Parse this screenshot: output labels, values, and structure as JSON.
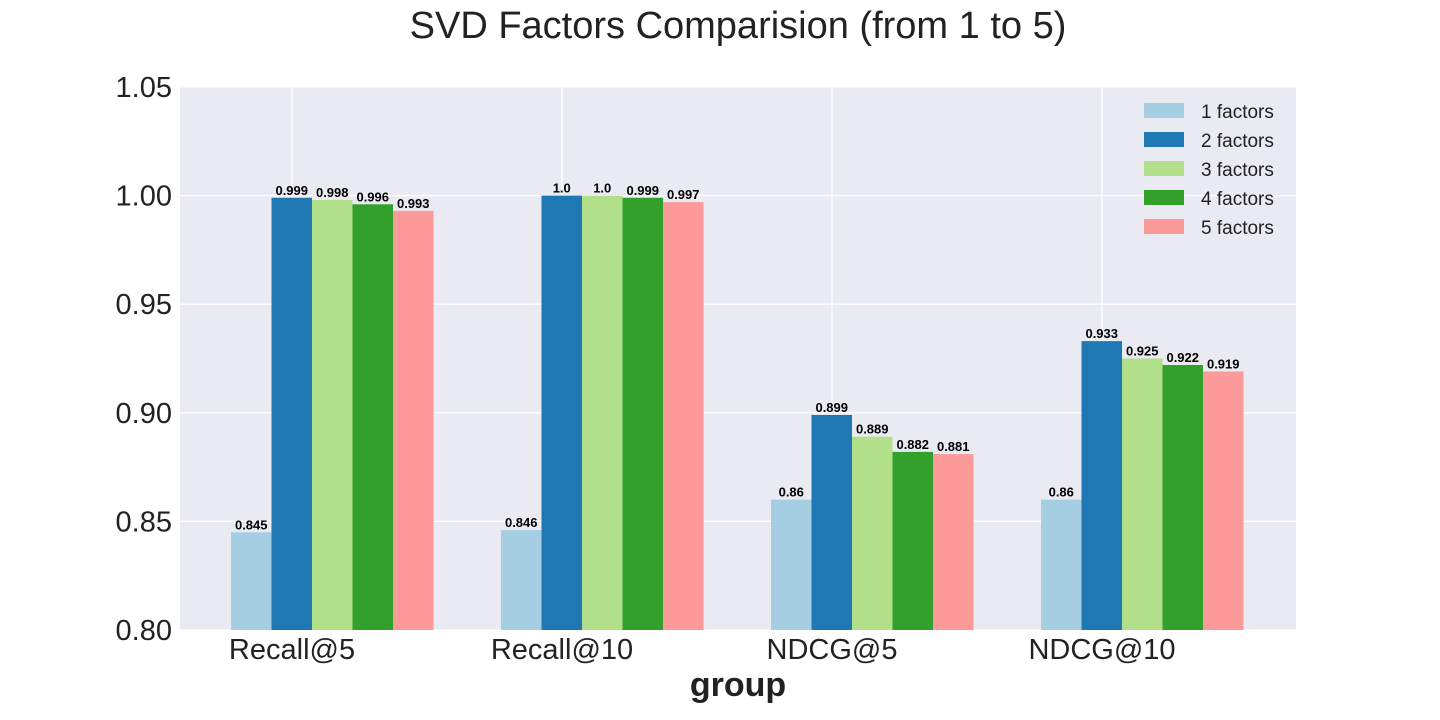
{
  "chart_data": {
    "type": "bar",
    "title": "SVD Factors Comparision (from 1 to 5)",
    "xlabel": "group",
    "ylabel": "",
    "ylim": [
      0.8,
      1.05
    ],
    "y_ticks": [
      "0.80",
      "0.85",
      "0.90",
      "0.95",
      "1.00",
      "1.05"
    ],
    "y_tick_values": [
      0.8,
      0.85,
      0.9,
      0.95,
      1.0,
      1.05
    ],
    "grid": true,
    "legend_placement": "top-right",
    "categories": [
      "Recall@5",
      "Recall@10",
      "NDCG@5",
      "NDCG@10"
    ],
    "series": [
      {
        "name": "1 factors",
        "color": "#a6cee3",
        "values": [
          0.845,
          0.846,
          0.86,
          0.86
        ],
        "labels": [
          "0.845",
          "0.846",
          "0.86",
          "0.86"
        ]
      },
      {
        "name": "2 factors",
        "color": "#1f78b4",
        "values": [
          0.999,
          1.0,
          0.899,
          0.933
        ],
        "labels": [
          "0.999",
          "1.0",
          "0.899",
          "0.933"
        ]
      },
      {
        "name": "3 factors",
        "color": "#b2df8a",
        "values": [
          0.998,
          1.0,
          0.889,
          0.925
        ],
        "labels": [
          "0.998",
          "1.0",
          "0.889",
          "0.925"
        ]
      },
      {
        "name": "4 factors",
        "color": "#33a02c",
        "values": [
          0.996,
          0.999,
          0.882,
          0.922
        ],
        "labels": [
          "0.996",
          "0.999",
          "0.882",
          "0.922"
        ]
      },
      {
        "name": "5 factors",
        "color": "#fb9a99",
        "values": [
          0.993,
          0.997,
          0.881,
          0.919
        ],
        "labels": [
          "0.993",
          "0.997",
          "0.881",
          "0.919"
        ]
      }
    ],
    "colors": {
      "plot_background": "#eaeaf2",
      "grid": "#ffffff",
      "text": "#222222"
    }
  }
}
